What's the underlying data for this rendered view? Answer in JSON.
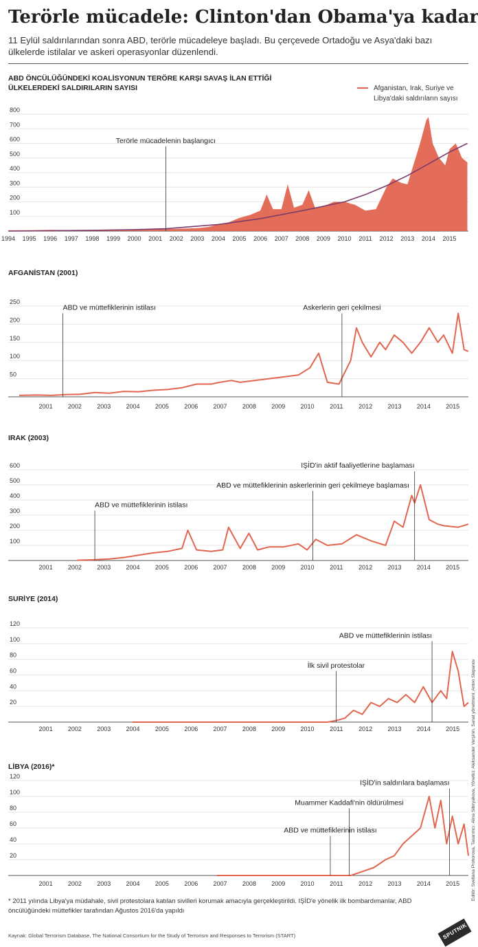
{
  "header": {
    "title": "Terörle mücadele: Clinton'dan Obama'ya kadar",
    "subtitle": "11 Eylül saldırılarından sonra ABD, terörle mücadeleye başladı. Bu çerçevede Ortadoğu ve Asya'daki bazı ülkelerde istilalar ve askeri operasyonlar düzenlendi."
  },
  "colors": {
    "series": "#e1654f",
    "trend": "#7b3b6b",
    "annot": "#333333"
  },
  "legend": {
    "label": "Afganistan, Irak, Suriye ve Libya'daki saldırıların sayısı"
  },
  "chart_data": [
    {
      "type": "area",
      "title": "ABD ÖNCÜLÜĞÜNDEKİ KOALİSYONUN TERÖRE KARŞI SAVAŞ İLAN ETTİĞİ ÜLKELERDEKİ SALDIRILARIN SAYISI",
      "x_labels": [
        "1994",
        "1995",
        "1996",
        "1997",
        "1998",
        "1999",
        "2000",
        "2001",
        "2002",
        "2003",
        "2004",
        "2005",
        "2006",
        "2007",
        "2008",
        "2009",
        "2010",
        "2011",
        "2012",
        "2013",
        "2014",
        "2015"
      ],
      "y_ticks": [
        800,
        700,
        600,
        500,
        400,
        300,
        200,
        100
      ],
      "ylim": [
        0,
        800
      ],
      "series": [
        {
          "name": "Afganistan, Irak, Suriye ve Libya'daki saldırıların sayısı",
          "x": [
            1994,
            1995,
            1996,
            1997,
            1998,
            1999,
            2000,
            2001,
            2002,
            2003,
            2003.5,
            2004,
            2004.5,
            2005,
            2005.5,
            2006,
            2006.3,
            2006.6,
            2007,
            2007.3,
            2007.6,
            2008,
            2008.3,
            2008.6,
            2009,
            2009.5,
            2010,
            2010.5,
            2011,
            2011.5,
            2012,
            2012.3,
            2012.7,
            2013,
            2013.3,
            2013.6,
            2013.9,
            2014,
            2014.2,
            2014.5,
            2014.8,
            2015,
            2015.3,
            2015.6,
            2015.85
          ],
          "values": [
            5,
            6,
            8,
            7,
            8,
            9,
            10,
            12,
            15,
            20,
            28,
            45,
            60,
            90,
            110,
            140,
            250,
            150,
            150,
            320,
            160,
            180,
            280,
            160,
            170,
            200,
            200,
            180,
            140,
            150,
            300,
            360,
            330,
            320,
            460,
            600,
            760,
            780,
            600,
            500,
            450,
            560,
            600,
            500,
            470
          ]
        },
        {
          "name": "",
          "x": [
            1994,
            1996,
            1998,
            2000,
            2001.5,
            2002,
            2004,
            2006,
            2008,
            2010,
            2011,
            2012,
            2013,
            2014,
            2015,
            2015.85
          ],
          "values": [
            0,
            2,
            5,
            10,
            16,
            22,
            45,
            85,
            140,
            200,
            250,
            310,
            380,
            460,
            540,
            600
          ]
        }
      ],
      "annotations": [
        {
          "x": 2001.5,
          "y": 580,
          "label": "Terörle mücadelenin başlangıcı"
        }
      ]
    },
    {
      "type": "line",
      "title": "AFGANİSTAN (2001)",
      "x_labels": [
        "2001",
        "2002",
        "2003",
        "2004",
        "2005",
        "2006",
        "2007",
        "2008",
        "2009",
        "2010",
        "2011",
        "2012",
        "2013",
        "2014",
        "2015"
      ],
      "y_ticks": [
        250,
        200,
        150,
        100,
        50
      ],
      "ylim": [
        0,
        250
      ],
      "series": [
        {
          "name": "",
          "x": [
            2000.4,
            2001,
            2001.5,
            2002,
            2002.5,
            2003,
            2003.5,
            2004,
            2004.5,
            2005,
            2005.5,
            2006,
            2006.5,
            2007,
            2007.3,
            2007.7,
            2008,
            2008.5,
            2009,
            2009.5,
            2010,
            2010.4,
            2010.7,
            2011,
            2011.4,
            2011.8,
            2012,
            2012.2,
            2012.5,
            2012.8,
            2013,
            2013.3,
            2013.6,
            2013.9,
            2014.2,
            2014.5,
            2014.8,
            2015,
            2015.3,
            2015.5,
            2015.7,
            2015.85
          ],
          "values": [
            4,
            5,
            4,
            6,
            7,
            12,
            10,
            15,
            14,
            18,
            20,
            25,
            35,
            35,
            40,
            45,
            40,
            45,
            50,
            55,
            60,
            80,
            120,
            40,
            35,
            100,
            190,
            150,
            110,
            150,
            130,
            170,
            150,
            120,
            150,
            190,
            150,
            170,
            120,
            230,
            130,
            125
          ]
        }
      ],
      "annotations": [
        {
          "x": 2001.9,
          "y": 230,
          "label": "ABD ve müttefiklerinin istilası"
        },
        {
          "x": 2011.5,
          "y": 230,
          "label": "Askerlerin geri çekilmesi"
        }
      ]
    },
    {
      "type": "line",
      "title": "IRAK (2003)",
      "x_labels": [
        "2001",
        "2002",
        "2003",
        "2004",
        "2005",
        "2006",
        "2007",
        "2008",
        "2009",
        "2010",
        "2011",
        "2012",
        "2013",
        "2014",
        "2015"
      ],
      "y_ticks": [
        600,
        500,
        400,
        300,
        200,
        100
      ],
      "ylim": [
        0,
        600
      ],
      "series": [
        {
          "name": "",
          "x": [
            2002.4,
            2003,
            2003.5,
            2004,
            2004.5,
            2005,
            2005.5,
            2006,
            2006.2,
            2006.5,
            2007,
            2007.4,
            2007.6,
            2008,
            2008.3,
            2008.6,
            2009,
            2009.5,
            2010,
            2010.3,
            2010.6,
            2011,
            2011.5,
            2012,
            2012.5,
            2013,
            2013.3,
            2013.6,
            2013.9,
            2014,
            2014.2,
            2014.5,
            2014.8,
            2015,
            2015.5,
            2015.85
          ],
          "values": [
            2,
            5,
            10,
            20,
            35,
            50,
            60,
            80,
            200,
            70,
            60,
            70,
            220,
            80,
            180,
            70,
            90,
            90,
            110,
            70,
            140,
            100,
            110,
            170,
            130,
            100,
            260,
            220,
            430,
            380,
            500,
            270,
            240,
            230,
            220,
            240
          ]
        }
      ],
      "annotations": [
        {
          "x": 2003.0,
          "y": 330,
          "label": "ABD ve müttefiklerinin istilası"
        },
        {
          "x": 2010.5,
          "y": 460,
          "label": "ABD ve müttefiklerinin askerlerinin geri çekilmeye başlaması"
        },
        {
          "x": 2014.0,
          "y": 590,
          "label": "IŞİD'in aktif faaliyetlerine başlaması"
        }
      ]
    },
    {
      "type": "line",
      "title": "SURİYE (2014)",
      "x_labels": [
        "2001",
        "2002",
        "2003",
        "2004",
        "2005",
        "2006",
        "2007",
        "2008",
        "2009",
        "2010",
        "2011",
        "2012",
        "2013",
        "2014",
        "2015"
      ],
      "y_ticks": [
        120,
        100,
        80,
        60,
        40,
        20
      ],
      "ylim": [
        0,
        120
      ],
      "series": [
        {
          "name": "",
          "x": [
            2004.3,
            2005,
            2006,
            2007,
            2008,
            2009,
            2010,
            2011,
            2011.3,
            2011.6,
            2011.9,
            2012.2,
            2012.5,
            2012.8,
            2013.1,
            2013.4,
            2013.7,
            2014,
            2014.3,
            2014.6,
            2014.9,
            2015.1,
            2015.3,
            2015.5,
            2015.7,
            2015.85
          ],
          "values": [
            0,
            0,
            0,
            0,
            0,
            0,
            0,
            0,
            2,
            5,
            15,
            10,
            25,
            20,
            30,
            25,
            35,
            25,
            45,
            25,
            40,
            30,
            90,
            65,
            20,
            25
          ]
        }
      ],
      "annotations": [
        {
          "x": 2011.3,
          "y": 65,
          "label": "İlk sivil protestolar"
        },
        {
          "x": 2014.6,
          "y": 103,
          "label": "ABD ve müttefiklerinin istilası"
        }
      ]
    },
    {
      "type": "line",
      "title": "LİBYA (2016)*",
      "x_labels": [
        "2001",
        "2002",
        "2003",
        "2004",
        "2005",
        "2006",
        "2007",
        "2008",
        "2009",
        "2010",
        "2011",
        "2012",
        "2013",
        "2014",
        "2015"
      ],
      "y_ticks": [
        120,
        100,
        80,
        60,
        40,
        20
      ],
      "ylim": [
        0,
        120
      ],
      "series": [
        {
          "name": "",
          "x": [
            2007.2,
            2008,
            2009,
            2010,
            2011,
            2011.8,
            2012.2,
            2012.6,
            2013,
            2013.3,
            2013.6,
            2013.9,
            2014.2,
            2014.5,
            2014.7,
            2014.9,
            2015.1,
            2015.3,
            2015.5,
            2015.7,
            2015.85
          ],
          "values": [
            0,
            0,
            0,
            0,
            0,
            0,
            5,
            10,
            20,
            25,
            40,
            50,
            60,
            100,
            60,
            95,
            40,
            75,
            40,
            65,
            25
          ]
        }
      ],
      "annotations": [
        {
          "x": 2011.1,
          "y": 50,
          "label": "ABD ve müttefiklerinin istilası"
        },
        {
          "x": 2011.75,
          "y": 85,
          "label": "Muammer Kaddafi'nin öldürülmesi"
        },
        {
          "x": 2015.2,
          "y": 110,
          "label": "IŞİD'in saldırılara başlaması"
        }
      ]
    }
  ],
  "footer": {
    "footnote": "* 2011 yılında Libya'ya müdahale, sivil protestolara katılan sivilleri korumak amacıyla gerçekleştirildi. IŞİD'e yönelik ilk bombardımanlar, ABD öncülüğündeki müttefikler tarafından Ağustos 2016'da yapıldı",
    "source": "Kaynak: Global Terrorism Database, The National Consortium for the Study of Terrorism and Responses to Terrorism (START)",
    "credits": "Editör: Svetlana Prohorova, Tasarımcı: Alina Sibiryakova, Yönetici: Aleksander Verşinin, Sanat yönetmeni: Anton Stepanov",
    "logo": "SPUTNIK"
  }
}
